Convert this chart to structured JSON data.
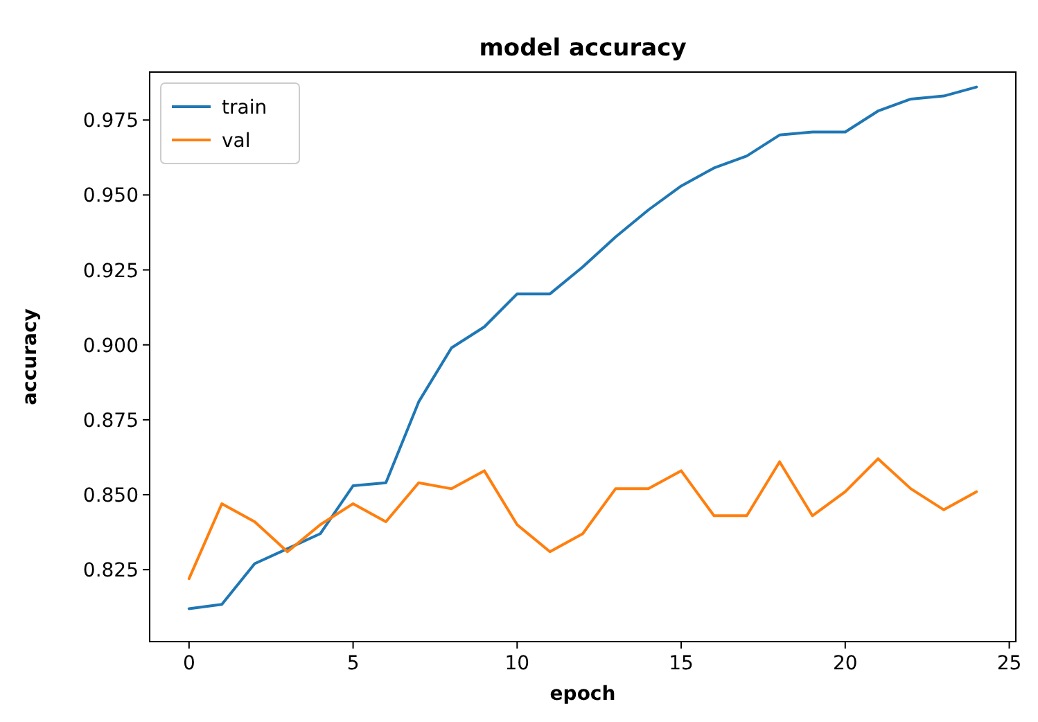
{
  "chart_data": {
    "type": "line",
    "title": "model accuracy",
    "xlabel": "epoch",
    "ylabel": "accuracy",
    "x": [
      0,
      1,
      2,
      3,
      4,
      5,
      6,
      7,
      8,
      9,
      10,
      11,
      12,
      13,
      14,
      15,
      16,
      17,
      18,
      19,
      20,
      21,
      22,
      23,
      24
    ],
    "series": [
      {
        "name": "train",
        "color": "#1f77b4",
        "values": [
          0.812,
          0.8134,
          0.827,
          0.832,
          0.837,
          0.853,
          0.854,
          0.881,
          0.899,
          0.906,
          0.917,
          0.917,
          0.926,
          0.936,
          0.945,
          0.953,
          0.959,
          0.963,
          0.97,
          0.971,
          0.971,
          0.978,
          0.982,
          0.983,
          0.986
        ]
      },
      {
        "name": "val",
        "color": "#ff7f0e",
        "values": [
          0.822,
          0.847,
          0.841,
          0.831,
          0.84,
          0.847,
          0.841,
          0.854,
          0.852,
          0.858,
          0.84,
          0.831,
          0.837,
          0.852,
          0.852,
          0.858,
          0.843,
          0.843,
          0.861,
          0.843,
          0.851,
          0.862,
          0.852,
          0.845,
          0.851
        ]
      }
    ],
    "xlim": [
      -1.2,
      25.2
    ],
    "ylim": [
      0.801,
      0.991
    ],
    "xticks": [
      0,
      5,
      10,
      15,
      20,
      25
    ],
    "yticks": [
      {
        "value": 0.825,
        "label": "0.825"
      },
      {
        "value": 0.85,
        "label": "0.850"
      },
      {
        "value": 0.875,
        "label": "0.875"
      },
      {
        "value": 0.9,
        "label": "0.900"
      },
      {
        "value": 0.925,
        "label": "0.925"
      },
      {
        "value": 0.95,
        "label": "0.950"
      },
      {
        "value": 0.975,
        "label": "0.975"
      }
    ],
    "grid": false,
    "legend": "top left",
    "line_style": "solid",
    "marker": "none"
  }
}
